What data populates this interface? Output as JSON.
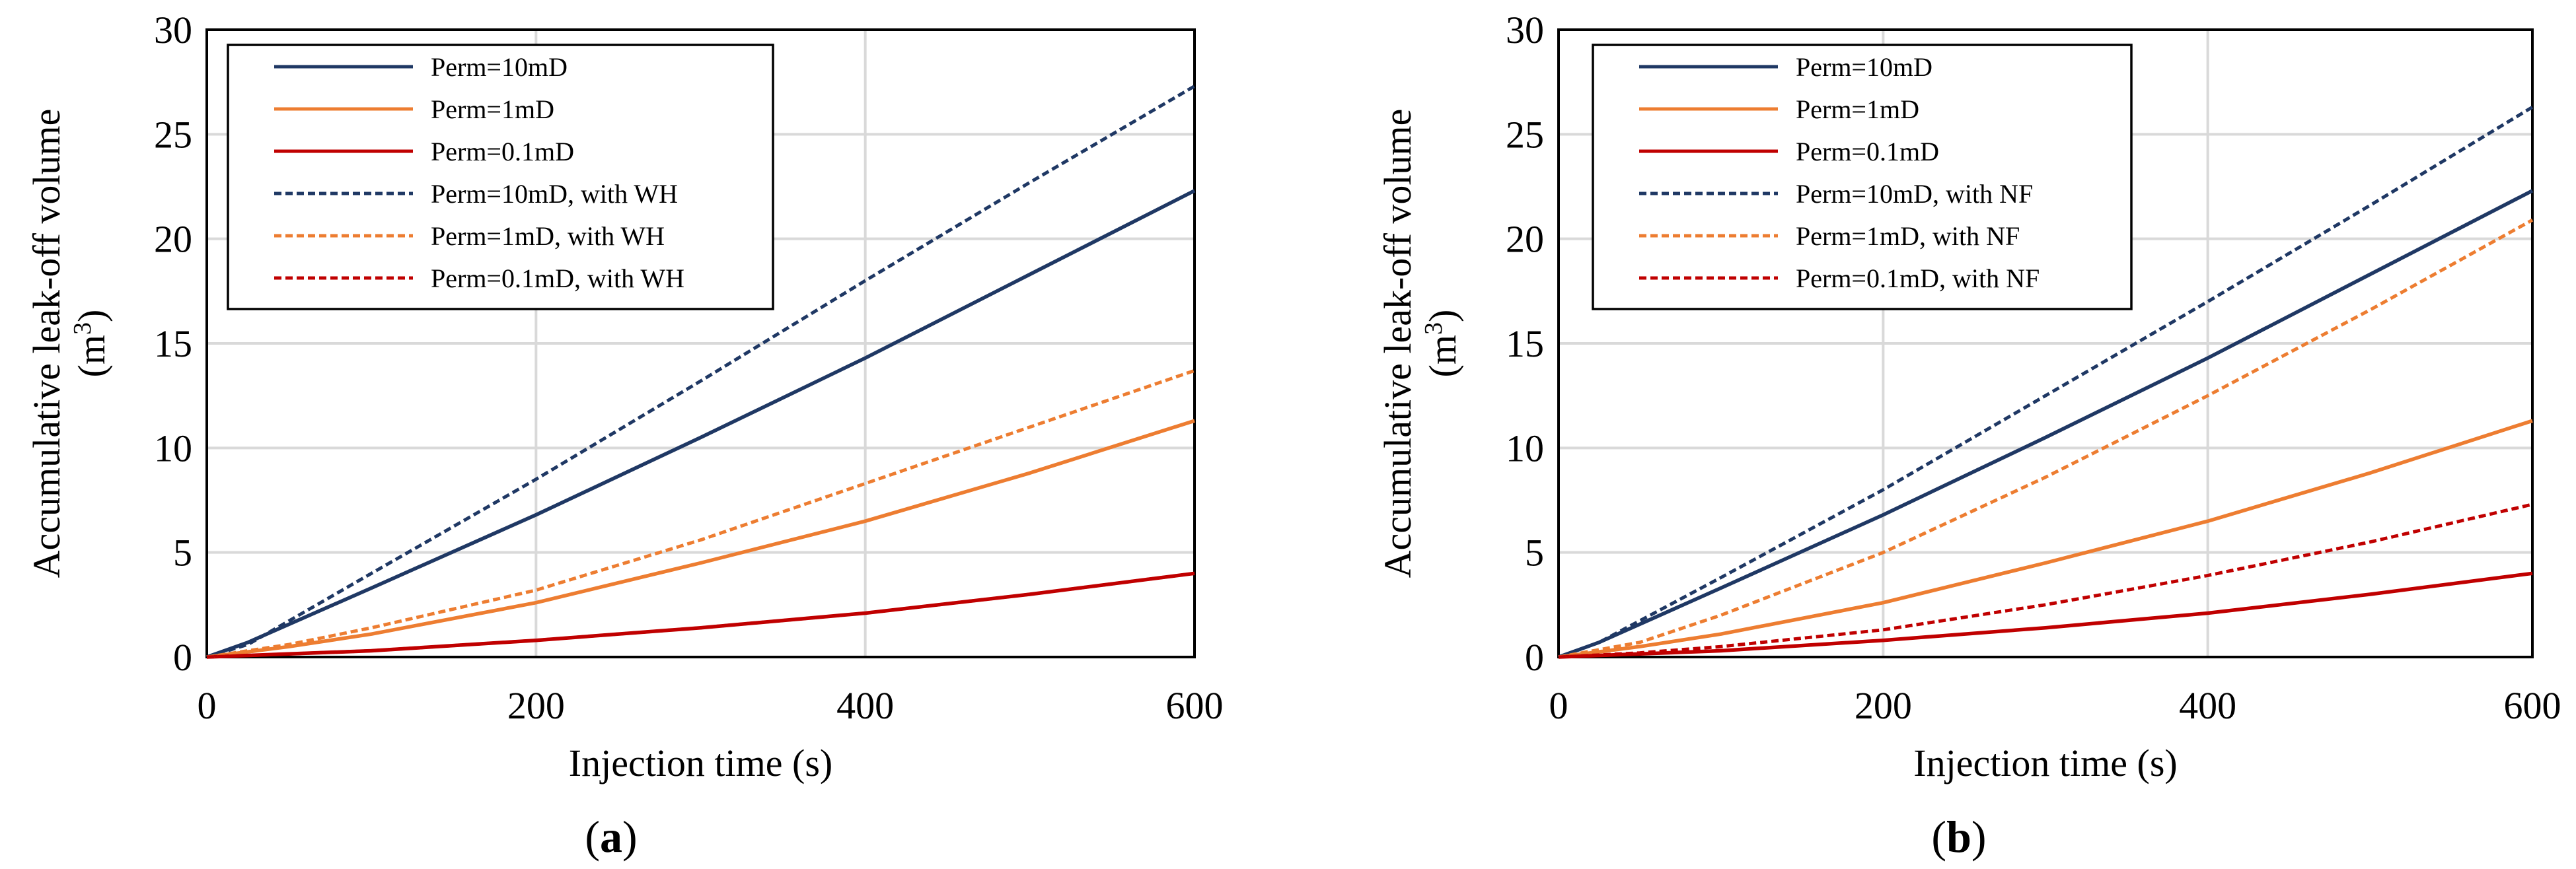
{
  "colors": {
    "dark_blue": "#1f3864",
    "orange": "#ed7d31",
    "red": "#c00000",
    "grid": "#d9d9d9"
  },
  "chart_data": [
    {
      "type": "line",
      "panel": "a",
      "panel_open": "(",
      "panel_close": ")",
      "xlabel": "Injection time (s)",
      "ylabel_line1": "Accumulative leak-off volume",
      "ylabel_line2_base": "(m",
      "ylabel_line2_sup": "3",
      "ylabel_line2_end": ")",
      "xlim": [
        0,
        600
      ],
      "ylim": [
        0,
        30
      ],
      "x_ticks": [
        "0",
        "200",
        "400",
        "600"
      ],
      "y_ticks": [
        "0",
        "5",
        "10",
        "15",
        "20",
        "25",
        "30"
      ],
      "grid": true,
      "legend_position": "top-left",
      "series": [
        {
          "name": "Perm=10mD",
          "color": "#1f3864",
          "dash": "solid",
          "x": [
            0,
            25,
            100,
            200,
            300,
            400,
            500,
            600
          ],
          "y": [
            0,
            0.7,
            3.3,
            6.8,
            10.5,
            14.3,
            18.3,
            22.3
          ]
        },
        {
          "name": "Perm=1mD",
          "color": "#ed7d31",
          "dash": "solid",
          "x": [
            0,
            50,
            100,
            200,
            300,
            400,
            500,
            600
          ],
          "y": [
            0,
            0.5,
            1.1,
            2.6,
            4.5,
            6.5,
            8.8,
            11.3
          ]
        },
        {
          "name": "Perm=0.1mD",
          "color": "#c00000",
          "dash": "solid",
          "x": [
            0,
            100,
            200,
            300,
            400,
            500,
            600
          ],
          "y": [
            0,
            0.3,
            0.8,
            1.4,
            2.1,
            3.0,
            4.0
          ]
        },
        {
          "name": "Perm=10mD, with WH",
          "color": "#1f3864",
          "dash": "dashed",
          "x": [
            0,
            25,
            100,
            200,
            300,
            400,
            500,
            600
          ],
          "y": [
            0,
            0.6,
            4.0,
            8.5,
            13.2,
            18.0,
            22.7,
            27.3
          ]
        },
        {
          "name": "Perm=1mD, with WH",
          "color": "#ed7d31",
          "dash": "dashed",
          "x": [
            0,
            50,
            100,
            200,
            300,
            400,
            500,
            600
          ],
          "y": [
            0,
            0.6,
            1.4,
            3.2,
            5.6,
            8.3,
            11.0,
            13.7
          ]
        },
        {
          "name": "Perm=0.1mD, with WH",
          "color": "#c00000",
          "dash": "dashed",
          "x": [
            0,
            100,
            200,
            300,
            400,
            500,
            600
          ],
          "y": [
            0,
            0.3,
            0.8,
            1.4,
            2.1,
            3.0,
            4.0
          ]
        }
      ]
    },
    {
      "type": "line",
      "panel": "b",
      "panel_open": "(",
      "panel_close": ")",
      "xlabel": "Injection time (s)",
      "ylabel_line1": "Accumulative leak-off volume",
      "ylabel_line2_base": "(m",
      "ylabel_line2_sup": "3",
      "ylabel_line2_end": ")",
      "xlim": [
        0,
        600
      ],
      "ylim": [
        0,
        30
      ],
      "x_ticks": [
        "0",
        "200",
        "400",
        "600"
      ],
      "y_ticks": [
        "0",
        "5",
        "10",
        "15",
        "20",
        "25",
        "30"
      ],
      "grid": true,
      "legend_position": "top-left",
      "series": [
        {
          "name": "Perm=10mD",
          "color": "#1f3864",
          "dash": "solid",
          "x": [
            0,
            25,
            100,
            200,
            300,
            400,
            500,
            600
          ],
          "y": [
            0,
            0.7,
            3.3,
            6.8,
            10.5,
            14.3,
            18.3,
            22.3
          ]
        },
        {
          "name": "Perm=1mD",
          "color": "#ed7d31",
          "dash": "solid",
          "x": [
            0,
            50,
            100,
            200,
            300,
            400,
            500,
            600
          ],
          "y": [
            0,
            0.5,
            1.1,
            2.6,
            4.5,
            6.5,
            8.8,
            11.3
          ]
        },
        {
          "name": "Perm=0.1mD",
          "color": "#c00000",
          "dash": "solid",
          "x": [
            0,
            100,
            200,
            300,
            400,
            500,
            600
          ],
          "y": [
            0,
            0.3,
            0.8,
            1.4,
            2.1,
            3.0,
            4.0
          ]
        },
        {
          "name": "Perm=10mD, with NF",
          "color": "#1f3864",
          "dash": "dashed",
          "x": [
            0,
            25,
            100,
            200,
            300,
            400,
            500,
            600
          ],
          "y": [
            0,
            0.7,
            3.8,
            8.0,
            12.5,
            17.0,
            21.6,
            26.3
          ]
        },
        {
          "name": "Perm=1mD, with NF",
          "color": "#ed7d31",
          "dash": "dashed",
          "x": [
            0,
            50,
            100,
            200,
            300,
            400,
            500,
            600
          ],
          "y": [
            0,
            0.7,
            2.0,
            5.0,
            8.6,
            12.5,
            16.6,
            20.9
          ]
        },
        {
          "name": "Perm=0.1mD, with NF",
          "color": "#c00000",
          "dash": "dashed",
          "x": [
            0,
            50,
            100,
            200,
            300,
            400,
            500,
            600
          ],
          "y": [
            0,
            0.2,
            0.5,
            1.3,
            2.5,
            3.9,
            5.5,
            7.3
          ]
        }
      ]
    }
  ]
}
